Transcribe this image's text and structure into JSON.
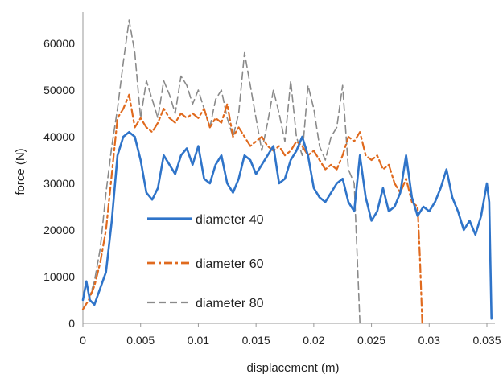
{
  "chart_data": {
    "type": "line",
    "xlabel": "displacement (m)",
    "ylabel": "force (N)",
    "xlim": [
      0,
      0.035
    ],
    "ylim": [
      0,
      65000
    ],
    "x_ticks": [
      0,
      0.005,
      0.01,
      0.015,
      0.02,
      0.025,
      0.03,
      0.035
    ],
    "x_tick_labels": [
      "0",
      "0.005",
      "0.01",
      "0.015",
      "0.02",
      "0.025",
      "0.03",
      "0.035"
    ],
    "y_ticks": [
      0,
      10000,
      20000,
      30000,
      40000,
      50000,
      60000
    ],
    "y_tick_labels": [
      "0",
      "10000",
      "20000",
      "30000",
      "40000",
      "50000",
      "60000"
    ],
    "grid": false,
    "legend_position": "inside-left",
    "series": [
      {
        "name": "diameter 40",
        "color": "#2f74c9",
        "dash": "solid",
        "x": [
          0,
          0.0003,
          0.0006,
          0.001,
          0.0015,
          0.002,
          0.0025,
          0.003,
          0.0035,
          0.004,
          0.0045,
          0.005,
          0.0055,
          0.006,
          0.0065,
          0.007,
          0.0075,
          0.008,
          0.0085,
          0.009,
          0.0095,
          0.01,
          0.0105,
          0.011,
          0.0115,
          0.012,
          0.0125,
          0.013,
          0.0135,
          0.014,
          0.0145,
          0.015,
          0.0155,
          0.016,
          0.0165,
          0.017,
          0.0175,
          0.018,
          0.0185,
          0.019,
          0.0195,
          0.02,
          0.0205,
          0.021,
          0.0215,
          0.022,
          0.0225,
          0.023,
          0.0235,
          0.024,
          0.0245,
          0.025,
          0.0255,
          0.026,
          0.0265,
          0.027,
          0.0275,
          0.028,
          0.0285,
          0.029,
          0.0295,
          0.03,
          0.0305,
          0.031,
          0.0315,
          0.032,
          0.0325,
          0.033,
          0.0335,
          0.034,
          0.0345,
          0.035,
          0.0352,
          0.0354
        ],
        "y": [
          5000,
          9000,
          5000,
          4000,
          7500,
          11000,
          22000,
          36000,
          40000,
          41000,
          40000,
          35000,
          28000,
          26500,
          29000,
          36000,
          34000,
          32000,
          36000,
          37500,
          34000,
          38000,
          31000,
          30000,
          34000,
          36000,
          30000,
          28000,
          31000,
          36000,
          35000,
          32000,
          34000,
          36000,
          38000,
          30000,
          31000,
          35000,
          37000,
          40000,
          36000,
          29000,
          27000,
          26000,
          28000,
          30000,
          31000,
          26000,
          24000,
          36000,
          27000,
          22000,
          24000,
          29000,
          24000,
          25000,
          28000,
          36000,
          27000,
          23000,
          25000,
          24000,
          26000,
          29000,
          33000,
          27000,
          24000,
          20000,
          22000,
          19000,
          23000,
          30000,
          26000,
          1000
        ]
      },
      {
        "name": "diameter 60",
        "color": "#e06a1e",
        "dash": "dashdot",
        "x": [
          0,
          0.0005,
          0.001,
          0.0015,
          0.002,
          0.0025,
          0.003,
          0.0035,
          0.004,
          0.0045,
          0.005,
          0.0055,
          0.006,
          0.0065,
          0.007,
          0.0075,
          0.008,
          0.0085,
          0.009,
          0.0095,
          0.01,
          0.0105,
          0.011,
          0.0115,
          0.012,
          0.0125,
          0.013,
          0.0135,
          0.014,
          0.0145,
          0.015,
          0.0155,
          0.016,
          0.0165,
          0.017,
          0.0175,
          0.018,
          0.0185,
          0.019,
          0.0195,
          0.02,
          0.0205,
          0.021,
          0.0215,
          0.022,
          0.0225,
          0.023,
          0.0235,
          0.024,
          0.0245,
          0.025,
          0.0255,
          0.026,
          0.0265,
          0.027,
          0.0275,
          0.028,
          0.0285,
          0.029,
          0.0292,
          0.0294
        ],
        "y": [
          3000,
          5000,
          8000,
          13000,
          20000,
          32000,
          44000,
          46000,
          49000,
          42000,
          44000,
          42000,
          41000,
          43000,
          46000,
          44000,
          43000,
          45000,
          44000,
          45000,
          44000,
          46000,
          42000,
          44000,
          43000,
          47000,
          40000,
          42000,
          40000,
          38000,
          39000,
          40000,
          38000,
          37000,
          38000,
          36000,
          37000,
          39000,
          38000,
          36000,
          37000,
          35000,
          33000,
          34000,
          33000,
          36000,
          40000,
          39000,
          41000,
          36000,
          35000,
          36000,
          33000,
          34000,
          30000,
          28000,
          31000,
          26000,
          25000,
          14000,
          0
        ]
      },
      {
        "name": "diameter 80",
        "color": "#8a8a8a",
        "dash": "dashed",
        "x": [
          0,
          0.0005,
          0.001,
          0.0015,
          0.002,
          0.0025,
          0.003,
          0.0035,
          0.004,
          0.0045,
          0.005,
          0.0055,
          0.006,
          0.0065,
          0.007,
          0.0075,
          0.008,
          0.0085,
          0.009,
          0.0095,
          0.01,
          0.0105,
          0.011,
          0.0115,
          0.012,
          0.0125,
          0.013,
          0.0135,
          0.014,
          0.0145,
          0.015,
          0.0155,
          0.016,
          0.0165,
          0.017,
          0.0175,
          0.018,
          0.0185,
          0.019,
          0.0195,
          0.02,
          0.0205,
          0.021,
          0.0215,
          0.022,
          0.0225,
          0.023,
          0.0235,
          0.0238,
          0.024
        ],
        "y": [
          3000,
          5000,
          9000,
          16000,
          28000,
          38000,
          46000,
          56000,
          65000,
          58000,
          44000,
          52000,
          48000,
          44000,
          52000,
          49000,
          45000,
          53000,
          51000,
          47000,
          50000,
          46000,
          42000,
          48000,
          50000,
          44000,
          40000,
          45000,
          58000,
          51000,
          44000,
          37000,
          43000,
          50000,
          45000,
          39000,
          52000,
          40000,
          36000,
          51000,
          46000,
          38000,
          35000,
          40000,
          42000,
          51000,
          33000,
          30000,
          12000,
          0
        ]
      }
    ]
  }
}
